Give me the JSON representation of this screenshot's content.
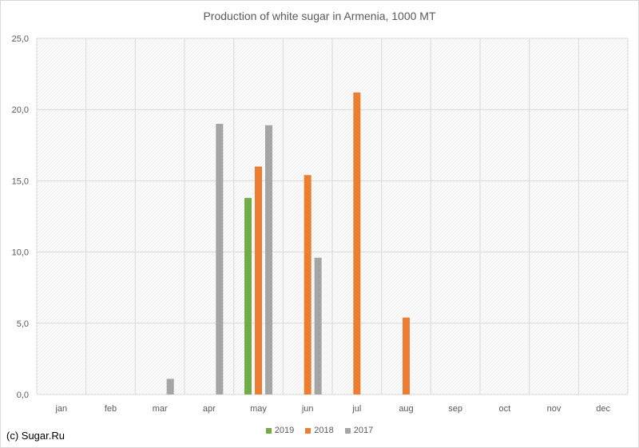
{
  "chart_data": {
    "type": "bar",
    "title": "Production of white sugar in Armenia, 1000 MT",
    "categories": [
      "jan",
      "feb",
      "mar",
      "apr",
      "may",
      "jun",
      "jul",
      "aug",
      "sep",
      "oct",
      "nov",
      "dec"
    ],
    "ylim": [
      0,
      25
    ],
    "yticks": [
      "0,0",
      "5,0",
      "10,0",
      "15,0",
      "20,0",
      "25,0"
    ],
    "grid": true,
    "legend_position": "bottom",
    "series": [
      {
        "name": "2019",
        "color": "#70ad47",
        "values": [
          null,
          null,
          null,
          null,
          13.8,
          null,
          null,
          null,
          null,
          null,
          null,
          null
        ]
      },
      {
        "name": "2018",
        "color": "#ed7d31",
        "values": [
          null,
          null,
          null,
          null,
          16.0,
          15.4,
          21.2,
          5.4,
          null,
          null,
          null,
          null
        ]
      },
      {
        "name": "2017",
        "color": "#a5a5a5",
        "values": [
          null,
          null,
          1.1,
          19.0,
          18.9,
          9.6,
          null,
          null,
          null,
          null,
          null,
          null
        ]
      }
    ]
  },
  "footer": {
    "credit": "(c) Sugar.Ru"
  }
}
